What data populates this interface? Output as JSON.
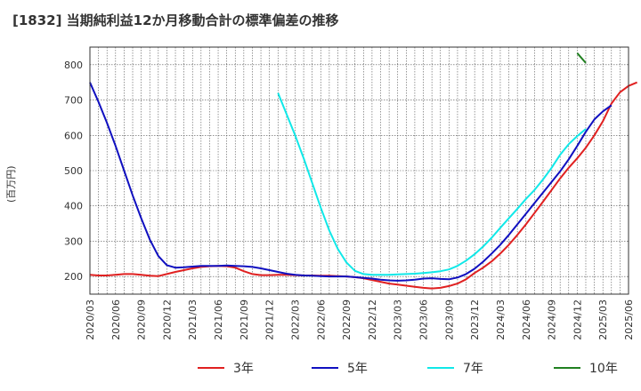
{
  "chart_data": {
    "type": "line",
    "title": "[1832]  当期純利益12か月移動合計の標準偏差の推移",
    "ylabel": "(百万円)",
    "xlabel": "",
    "ylim": [
      150,
      850
    ],
    "yticks": [
      200,
      300,
      400,
      500,
      600,
      700,
      800
    ],
    "x_start": "2020/03",
    "x_ticks": [
      "2020/03",
      "2020/06",
      "2020/09",
      "2020/12",
      "2021/03",
      "2021/06",
      "2021/09",
      "2021/12",
      "2022/03",
      "2022/06",
      "2022/09",
      "2022/12",
      "2023/03",
      "2023/06",
      "2023/09",
      "2023/12",
      "2024/03",
      "2024/06",
      "2024/09",
      "2024/12",
      "2025/03",
      "2025/06"
    ],
    "grid": true,
    "legend_position": "bottom",
    "series": [
      {
        "name": "3年",
        "color": "#e02020",
        "start": "2020/03",
        "values": [
          205,
          203,
          203,
          205,
          207,
          207,
          205,
          202,
          201,
          207,
          213,
          218,
          223,
          227,
          229,
          230,
          229,
          225,
          215,
          207,
          204,
          204,
          205,
          205,
          204,
          203,
          203,
          202,
          202,
          201,
          200,
          198,
          195,
          190,
          185,
          180,
          177,
          174,
          171,
          168,
          166,
          168,
          173,
          180,
          192,
          210,
          225,
          243,
          265,
          290,
          318,
          348,
          380,
          412,
          445,
          478,
          508,
          535,
          565,
          600,
          640,
          690,
          722,
          740,
          750
        ]
      },
      {
        "name": "5年",
        "color": "#1010c0",
        "start": "2020/03",
        "values": [
          750,
          695,
          635,
          570,
          500,
          430,
          365,
          305,
          258,
          232,
          225,
          226,
          228,
          230,
          230,
          230,
          231,
          230,
          229,
          227,
          223,
          218,
          213,
          208,
          205,
          203,
          202,
          201,
          200,
          200,
          200,
          198,
          196,
          194,
          191,
          189,
          188,
          189,
          191,
          194,
          195,
          193,
          192,
          197,
          207,
          222,
          242,
          265,
          290,
          318,
          348,
          378,
          408,
          438,
          468,
          498,
          532,
          570,
          610,
          645,
          668,
          685
        ]
      },
      {
        "name": "7年",
        "color": "#10e8e8",
        "start": "2022/01",
        "values": [
          720,
          660,
          600,
          535,
          465,
          395,
          330,
          278,
          240,
          216,
          207,
          205,
          205,
          205,
          206,
          207,
          208,
          210,
          212,
          215,
          220,
          230,
          245,
          263,
          285,
          310,
          338,
          365,
          392,
          420,
          445,
          475,
          508,
          545,
          575,
          598,
          618
        ]
      },
      {
        "name": "10年",
        "color": "#208020",
        "start": "2024/12",
        "values": [
          833,
          805
        ]
      }
    ]
  }
}
